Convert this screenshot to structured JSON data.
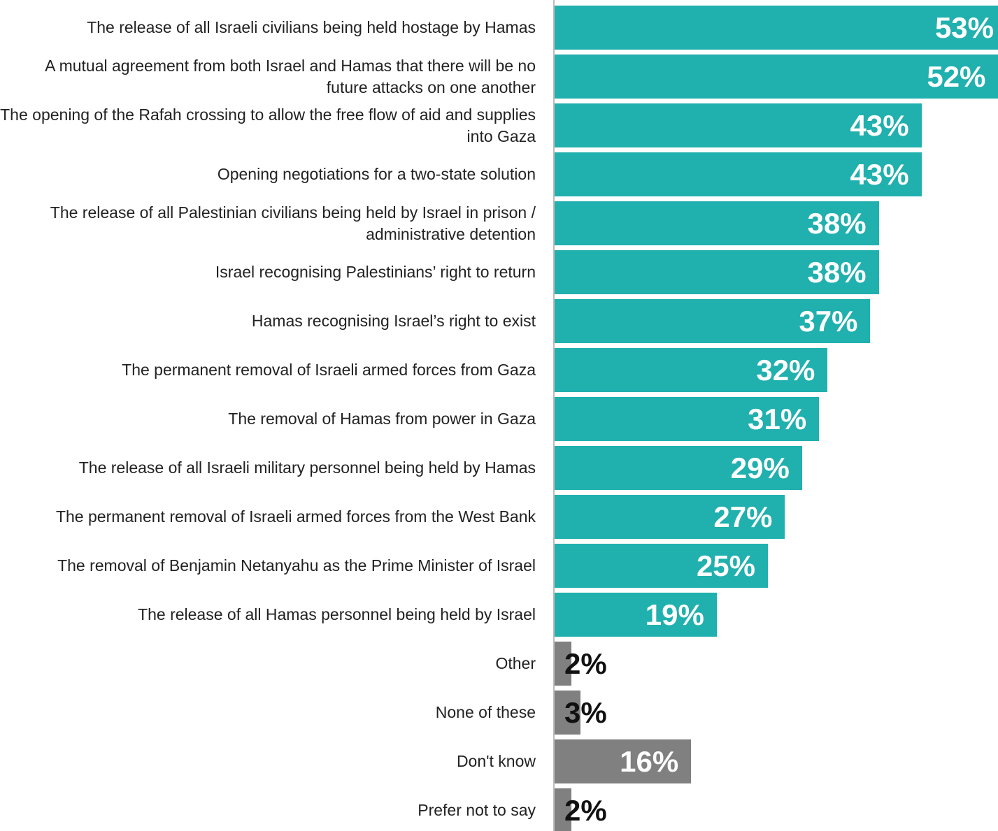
{
  "chart_data": {
    "type": "barh",
    "categories": [
      "The release of all Israeli civilians being held hostage by Hamas",
      "A mutual agreement from both Israel and Hamas that there will be no future attacks on one another",
      "The opening of the Rafah crossing to allow the free flow of aid and supplies into Gaza",
      "Opening negotiations for a two-state solution",
      "The release of all Palestinian civilians being held by Israel in prison / administrative detention",
      "Israel recognising Palestinians’ right to return",
      "Hamas recognising Israel’s right to exist",
      "The permanent removal of Israeli armed forces from Gaza",
      "The removal of Hamas from power in Gaza",
      "The release of all Israeli military personnel being held by Hamas",
      "The permanent removal of Israeli armed forces from the West Bank",
      "The removal of Benjamin Netanyahu as the Prime Minister of Israel",
      "The release of all Hamas personnel being held by Israel",
      "Other",
      "None of these",
      "Don't know",
      "Prefer not to say"
    ],
    "values": [
      53,
      52,
      43,
      43,
      38,
      38,
      37,
      32,
      31,
      29,
      27,
      25,
      19,
      2,
      3,
      16,
      2
    ],
    "value_labels": [
      "53%",
      "52%",
      "43%",
      "43%",
      "38%",
      "38%",
      "37%",
      "32%",
      "31%",
      "29%",
      "27%",
      "25%",
      "19%",
      "2%",
      "3%",
      "16%",
      "2%"
    ],
    "colors": [
      "#20b0ae",
      "#20b0ae",
      "#20b0ae",
      "#20b0ae",
      "#20b0ae",
      "#20b0ae",
      "#20b0ae",
      "#20b0ae",
      "#20b0ae",
      "#20b0ae",
      "#20b0ae",
      "#20b0ae",
      "#20b0ae",
      "#808080",
      "#808080",
      "#808080",
      "#808080"
    ]
  }
}
